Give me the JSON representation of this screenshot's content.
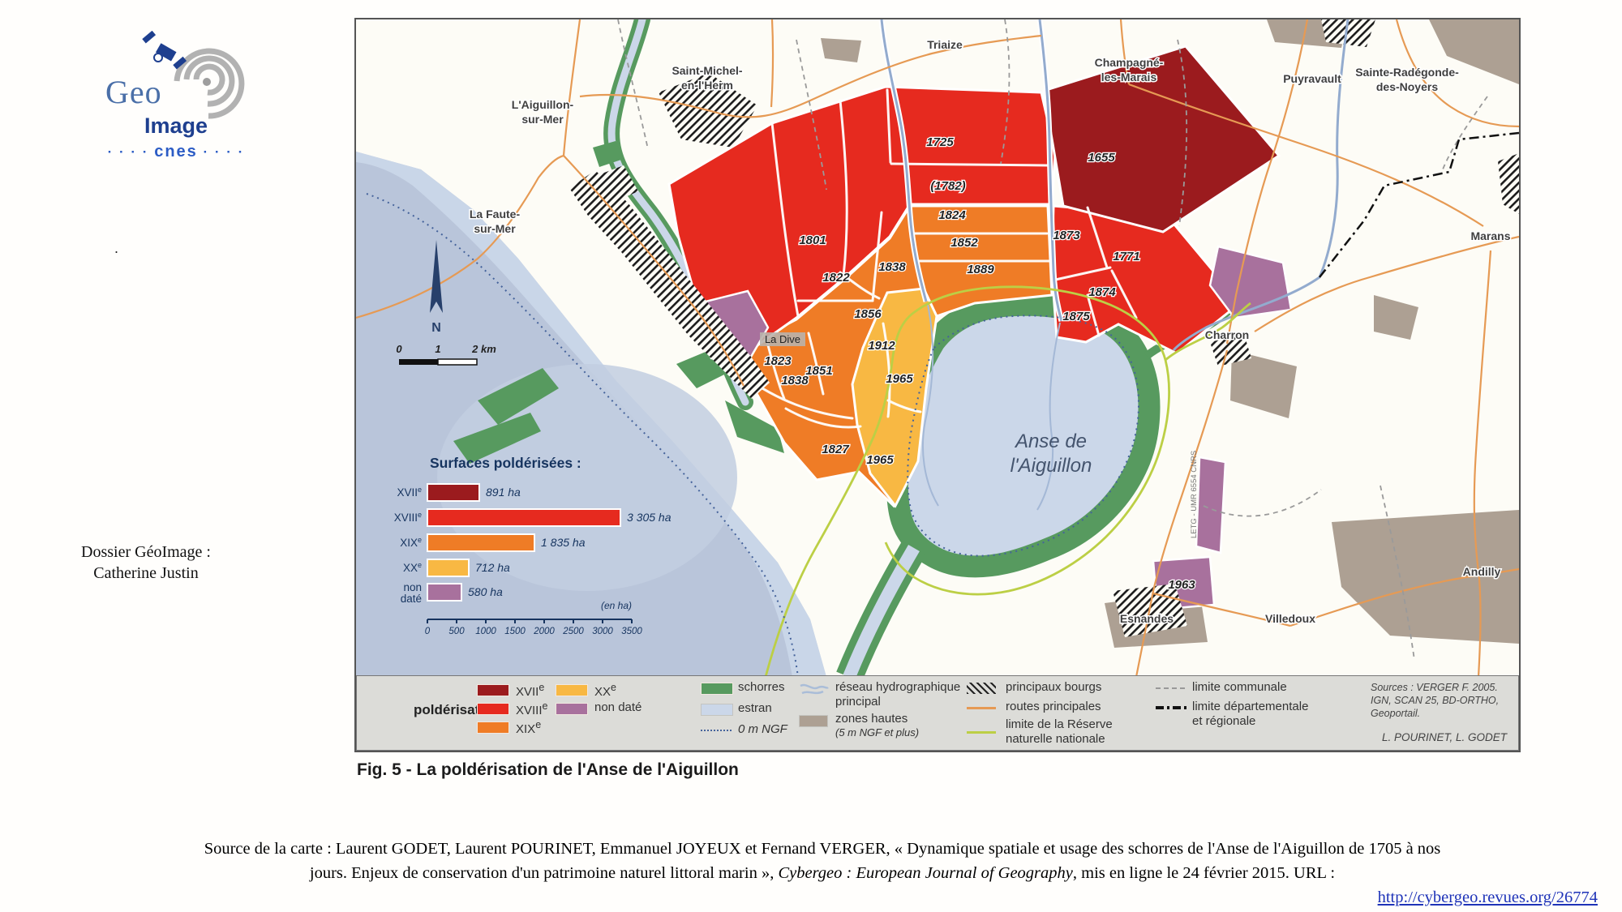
{
  "logo": {
    "geo": "Geo",
    "image": "Image",
    "cnes": "cnes",
    "dots_left": "· · · ·",
    "dots_right": "· · · ·"
  },
  "left_panel": {
    "stray_dot": ".",
    "dossier_line1": "Dossier GéoImage  :",
    "dossier_line2": "Catherine Justin"
  },
  "map": {
    "towns": {
      "saint_michel_l1": "Saint-Michel-",
      "saint_michel_l2": "en-l'Herm",
      "aiguillon_l1": "L'Aiguillon-",
      "aiguillon_l2": "sur-Mer",
      "faute_l1": "La Faute-",
      "faute_l2": "sur-Mer",
      "triaize": "Triaize",
      "champagne_l1": "Champagné-",
      "champagne_l2": "les-Marais",
      "puyravault": "Puyravault",
      "radegonde_l1": "Sainte-Radégonde-",
      "radegonde_l2": "des-Noyers",
      "marans": "Marans",
      "charron": "Charron",
      "esnandes": "Esnandes",
      "villedoux": "Villedoux",
      "andilly": "Andilly",
      "la_dive": "La Dive",
      "anse_l1": "Anse de",
      "anse_l2": "l'Aiguillon"
    },
    "years": {
      "y1725": "1725",
      "y1655": "1655",
      "y1782": "(1782)",
      "y1824": "1824",
      "y1852": "1852",
      "y1889": "1889",
      "y1873": "1873",
      "y1771": "1771",
      "y1874": "1874",
      "y1875": "1875",
      "y1801": "1801",
      "y1822": "1822",
      "y1838a": "1838",
      "y1856": "1856",
      "y1912": "1912",
      "y1965a": "1965",
      "y1823": "1823",
      "y1851": "1851",
      "y1838b": "1838",
      "y1827": "1827",
      "y1965b": "1965",
      "y1963": "1963"
    },
    "compass_n": "N",
    "scale": {
      "t0": "0",
      "t1": "1",
      "t2": "2 km"
    },
    "credit_vertical": "LETG - UMR 6554 CNRS"
  },
  "chart_data": {
    "type": "bar",
    "title": "Surfaces poldérisées :",
    "categories": [
      "XVIIe",
      "XVIIIe",
      "XIXe",
      "XXe",
      "non daté"
    ],
    "values": [
      891,
      3305,
      1835,
      712,
      580
    ],
    "value_labels": [
      "891 ha",
      "3 305 ha",
      "1 835 ha",
      "712 ha",
      "580 ha"
    ],
    "row_labels": {
      "r1": "XVII",
      "r2": "XVIII",
      "r3": "XIX",
      "r4": "XX",
      "sup": "e",
      "nd_l1": "non",
      "nd_l2": "daté"
    },
    "xlabel": "",
    "ylabel": "",
    "xlim": [
      0,
      3500
    ],
    "grid": false,
    "legend_position": "none",
    "unit_note": "(en ha)",
    "ticks": [
      "0",
      "500",
      "1000",
      "1500",
      "2000",
      "2500",
      "3000",
      "3500"
    ],
    "colors": {
      "XVIIe": "#9b1b1e",
      "XVIIIe": "#e62a1f",
      "XIXe": "#ef7c26",
      "XXe": "#f8b843",
      "non_date": "#a8719d"
    }
  },
  "legend": {
    "title": "poldérisation :",
    "sup": "e",
    "xvii": "XVII",
    "xviii": "XVIII",
    "xix": "XIX",
    "xx": "XX",
    "nd": "non daté",
    "schorres": "schorres",
    "estran": "estran",
    "ngf": "0 m NGF",
    "reseau_l1": "réseau hydrographique",
    "reseau_l2": "principal",
    "zones_l1": "zones hautes",
    "zones_l2": "(5 m NGF et plus)",
    "bourgs": "principaux bourgs",
    "routes": "routes principales",
    "rnn_l1": "limite de la Réserve",
    "rnn_l2": "naturelle nationale",
    "communale": "limite communale",
    "dept_l1": "limite départementale",
    "dept_l2": "et régionale",
    "sources_l1": "Sources : VERGER F. 2005.",
    "sources_l2": "IGN, SCAN 25, BD-ORTHO,",
    "sources_l3": "Geoportail.",
    "credit": "L. POURINET, L. GODET"
  },
  "caption": "Fig. 5 - La poldérisation de l'Anse de l'Aiguillon",
  "source_block": {
    "line1": "Source de la carte : Laurent GODET, Laurent POURINET, Emmanuel JOYEUX et Fernand VERGER, « Dynamique spatiale et usage des schorres de l'Anse de l'Aiguillon de 1705 à nos",
    "line2_pre": "jours. Enjeux de conservation d'un patrimoine naturel littoral marin », ",
    "line2_italic": "Cybergeo : European Journal of Geography",
    "line2_post": ", mis en ligne le 24 février 2015. URL :",
    "link": "http://cybergeo.revues.org/26774"
  },
  "colors": {
    "xvii": "#9b1b1e",
    "xviii": "#e62a1f",
    "xix": "#ef7c26",
    "xx": "#f8b843",
    "non_date": "#a8719d",
    "schorres": "#579a5f",
    "estran": "#cbd7e9",
    "sea": "#b9c5da",
    "rnn_line": "#bccf45",
    "road": "#e69a54",
    "river": "#93abce",
    "zones_hautes": "#ada093",
    "legend_bg": "#dcdcd8",
    "chart_text": "#16345f",
    "link": "#1e33b8",
    "logo_blue": "#1e3f8f"
  }
}
